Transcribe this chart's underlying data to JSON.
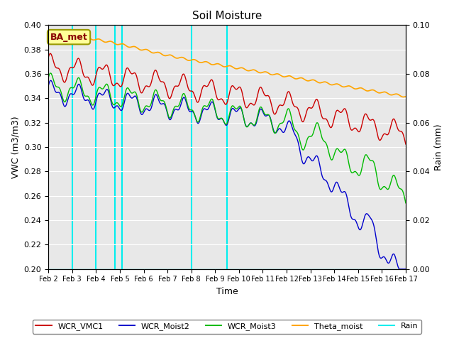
{
  "title": "Soil Moisture",
  "xlabel": "Time",
  "ylabel_left": "VWC (m3/m3)",
  "ylabel_right": "Rain (mm)",
  "ylim_left": [
    0.2,
    0.4
  ],
  "ylim_right": [
    0.0,
    0.1
  ],
  "yticks_left": [
    0.2,
    0.22,
    0.24,
    0.26,
    0.28,
    0.3,
    0.32,
    0.34,
    0.36,
    0.38,
    0.4
  ],
  "yticks_right": [
    0.0,
    0.02,
    0.04,
    0.06,
    0.08,
    0.1
  ],
  "xtick_labels": [
    "Feb 2",
    "Feb 3",
    "Feb 4",
    "Feb 5",
    "Feb 6",
    "Feb 7",
    "Feb 8",
    "Feb 9",
    "Feb 10",
    "Feb 11",
    "Feb 12",
    "Feb 13",
    "Feb 14",
    "Feb 15",
    "Feb 16",
    "Feb 17"
  ],
  "vlines": [
    1.0,
    2.0,
    2.8,
    3.1,
    6.0,
    7.5
  ],
  "vline_color": "#00EEEE",
  "colors": {
    "WCR_VMC1": "#CC0000",
    "WCR_Moist2": "#0000CC",
    "WCR_Moist3": "#00BB00",
    "Theta_moist": "#FFA500",
    "Rain": "#00EEEE"
  },
  "background_color": "#E8E8E8",
  "annotation_text": "BA_met",
  "annotation_color": "#880000",
  "annotation_bg": "#FFFF99",
  "annotation_border": "#999900"
}
